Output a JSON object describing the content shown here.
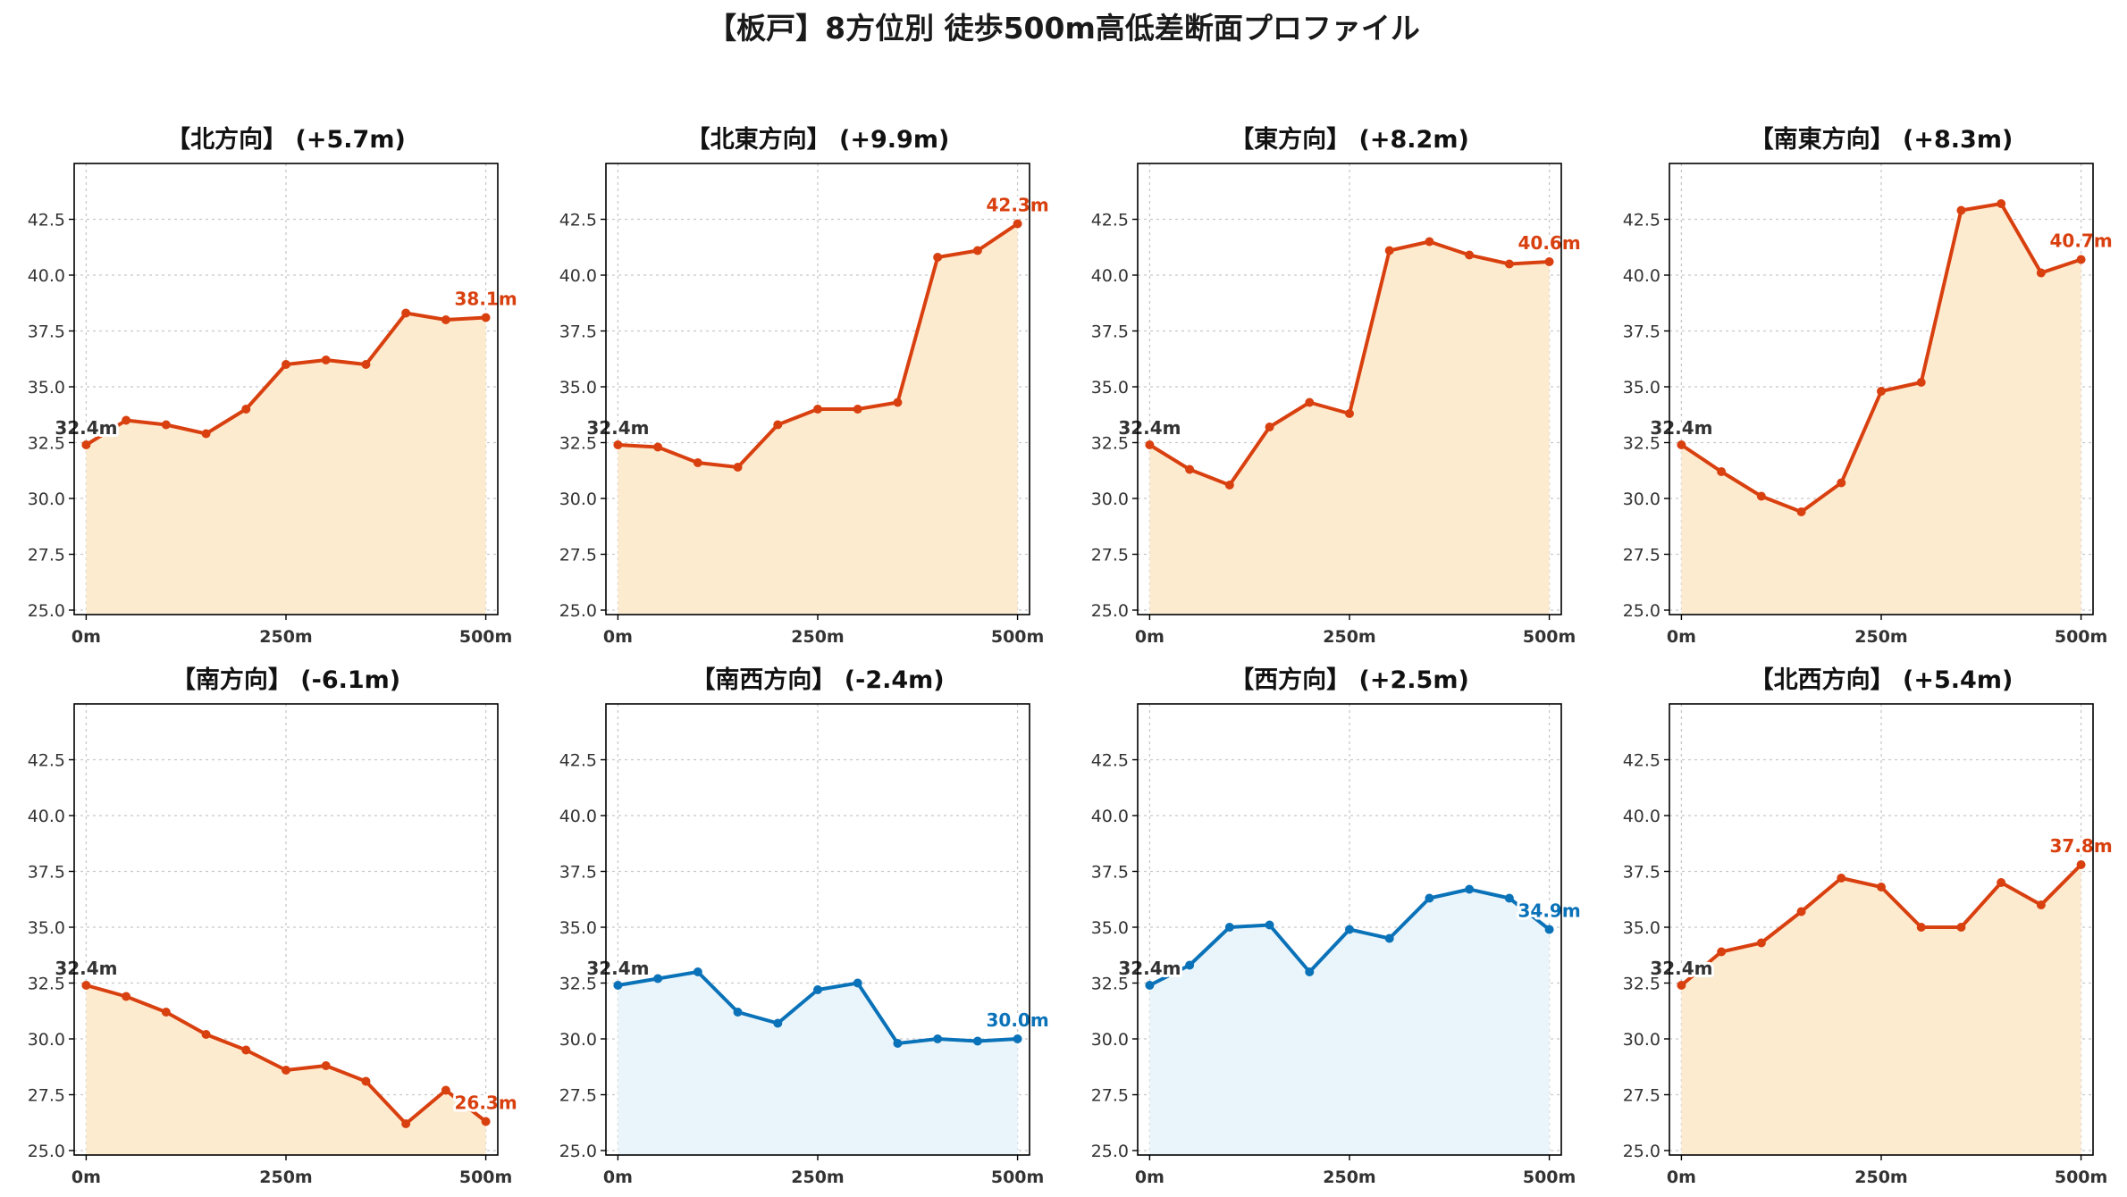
{
  "title": "【板戸】8方位別 徒歩500m高低差断面プロファイル",
  "colors": {
    "up": "#d9400f",
    "up_fill": "#fdebd0",
    "down": "#0a72b8",
    "down_fill": "#eaf5fb",
    "start_label": "#333333"
  },
  "chart_data": [
    {
      "type": "area",
      "title": "【北方向】 (+5.7m)",
      "trend": "up",
      "x": [
        0,
        50,
        100,
        150,
        200,
        250,
        300,
        350,
        400,
        450,
        500
      ],
      "values": [
        32.4,
        33.5,
        33.3,
        32.9,
        34.0,
        36.0,
        36.2,
        36.0,
        38.3,
        38.0,
        38.1
      ],
      "start_label": "32.4m",
      "end_label": "38.1m"
    },
    {
      "type": "area",
      "title": "【北東方向】 (+9.9m)",
      "trend": "up",
      "x": [
        0,
        50,
        100,
        150,
        200,
        250,
        300,
        350,
        400,
        450,
        500
      ],
      "values": [
        32.4,
        32.3,
        31.6,
        31.4,
        33.3,
        34.0,
        34.0,
        34.3,
        40.8,
        41.1,
        42.3
      ],
      "start_label": "32.4m",
      "end_label": "42.3m"
    },
    {
      "type": "area",
      "title": "【東方向】 (+8.2m)",
      "trend": "up",
      "x": [
        0,
        50,
        100,
        150,
        200,
        250,
        300,
        350,
        400,
        450,
        500
      ],
      "values": [
        32.4,
        31.3,
        30.6,
        33.2,
        34.3,
        33.8,
        41.1,
        41.5,
        40.9,
        40.5,
        40.6
      ],
      "start_label": "32.4m",
      "end_label": "40.6m"
    },
    {
      "type": "area",
      "title": "【南東方向】 (+8.3m)",
      "trend": "up",
      "x": [
        0,
        50,
        100,
        150,
        200,
        250,
        300,
        350,
        400,
        450,
        500
      ],
      "values": [
        32.4,
        31.2,
        30.1,
        29.4,
        30.7,
        34.8,
        35.2,
        42.9,
        43.2,
        40.1,
        40.7
      ],
      "start_label": "32.4m",
      "end_label": "40.7m"
    },
    {
      "type": "area",
      "title": "【南方向】 (-6.1m)",
      "trend": "up",
      "x": [
        0,
        50,
        100,
        150,
        200,
        250,
        300,
        350,
        400,
        450,
        500
      ],
      "values": [
        32.4,
        31.9,
        31.2,
        30.2,
        29.5,
        28.6,
        28.8,
        28.1,
        26.2,
        27.7,
        26.3
      ],
      "start_label": "32.4m",
      "end_label": "26.3m"
    },
    {
      "type": "area",
      "title": "【南西方向】 (-2.4m)",
      "trend": "down",
      "x": [
        0,
        50,
        100,
        150,
        200,
        250,
        300,
        350,
        400,
        450,
        500
      ],
      "values": [
        32.4,
        32.7,
        33.0,
        31.2,
        30.7,
        32.2,
        32.5,
        29.8,
        30.0,
        29.9,
        30.0
      ],
      "start_label": "32.4m",
      "end_label": "30.0m"
    },
    {
      "type": "area",
      "title": "【西方向】 (+2.5m)",
      "trend": "down",
      "x": [
        0,
        50,
        100,
        150,
        200,
        250,
        300,
        350,
        400,
        450,
        500
      ],
      "values": [
        32.4,
        33.3,
        35.0,
        35.1,
        33.0,
        34.9,
        34.5,
        36.3,
        36.7,
        36.3,
        34.9
      ],
      "start_label": "32.4m",
      "end_label": "34.9m"
    },
    {
      "type": "area",
      "title": "【北西方向】 (+5.4m)",
      "trend": "up",
      "x": [
        0,
        50,
        100,
        150,
        200,
        250,
        300,
        350,
        400,
        450,
        500
      ],
      "values": [
        32.4,
        33.9,
        34.3,
        35.7,
        37.2,
        36.8,
        35.0,
        35.0,
        37.0,
        36.0,
        37.8
      ],
      "start_label": "32.4m",
      "end_label": "37.8m"
    }
  ],
  "axes": {
    "ylim": [
      24.8,
      45.0
    ],
    "xlim": [
      -15,
      515
    ],
    "yticks": [
      25.0,
      27.5,
      30.0,
      32.5,
      35.0,
      37.5,
      40.0,
      42.5
    ],
    "ytick_labels": [
      "25.0",
      "27.5",
      "30.0",
      "32.5",
      "35.0",
      "37.5",
      "40.0",
      "42.5"
    ],
    "xticks": [
      0,
      250,
      500
    ],
    "xtick_labels": [
      "0m",
      "250m",
      "500m"
    ],
    "grid": true
  }
}
